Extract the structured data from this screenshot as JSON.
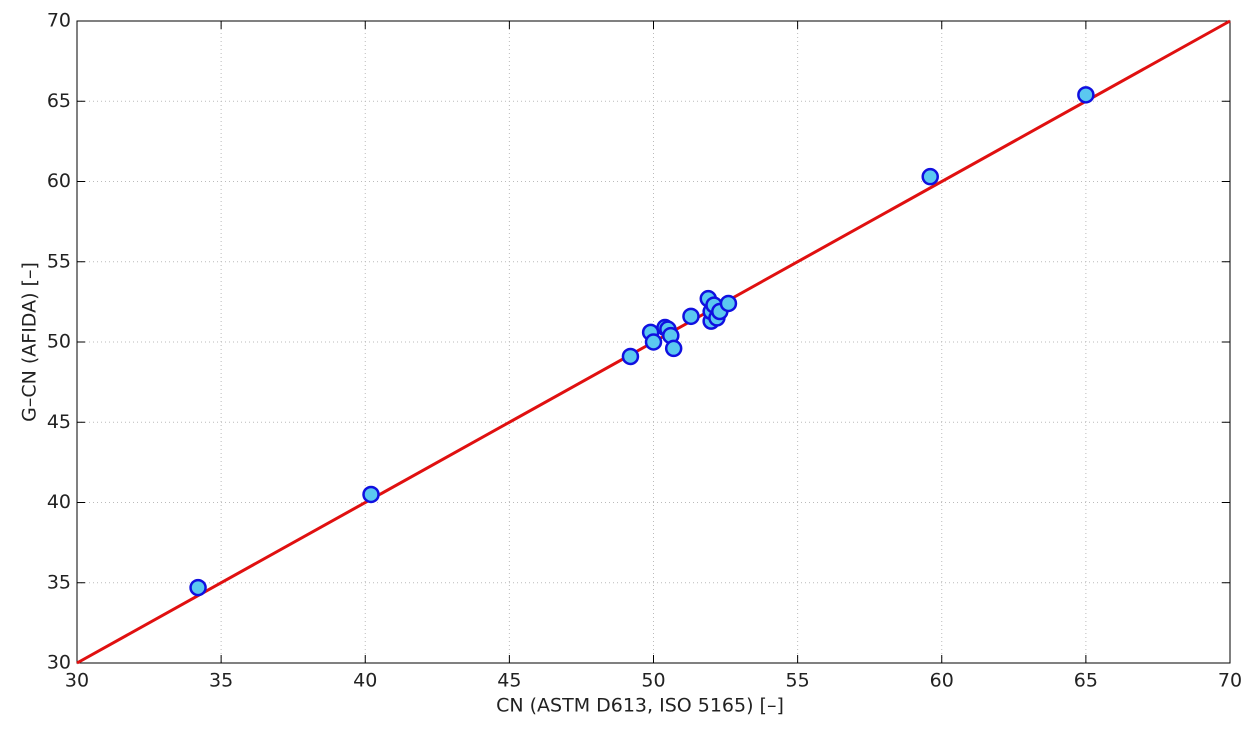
{
  "chart_data": {
    "type": "scatter",
    "x_label": "CN (ASTM D613, ISO 5165) [–]",
    "y_label": "G–CN (AFIDA) [–]",
    "x": [
      34.2,
      40.2,
      49.2,
      49.9,
      50.0,
      50.4,
      50.5,
      50.6,
      50.7,
      51.3,
      51.9,
      52.0,
      52.0,
      52.1,
      52.2,
      52.3,
      52.6,
      59.6,
      65.0
    ],
    "y": [
      34.7,
      40.5,
      49.1,
      50.6,
      50.0,
      50.9,
      50.8,
      50.4,
      49.6,
      51.6,
      52.7,
      51.3,
      51.9,
      52.3,
      51.5,
      51.9,
      52.4,
      60.3,
      65.4
    ],
    "color": "#5bc8f0",
    "edge_color": "#1010e0",
    "line": {
      "x": [
        30,
        70
      ],
      "y": [
        30,
        70
      ],
      "color": "#e01010"
    },
    "xlim": [
      30,
      70
    ],
    "ylim": [
      30,
      70
    ],
    "xticks": [
      30,
      35,
      40,
      45,
      50,
      55,
      60,
      65,
      70
    ],
    "yticks": [
      30,
      35,
      40,
      45,
      50,
      55,
      60,
      65,
      70
    ],
    "grid": true
  }
}
